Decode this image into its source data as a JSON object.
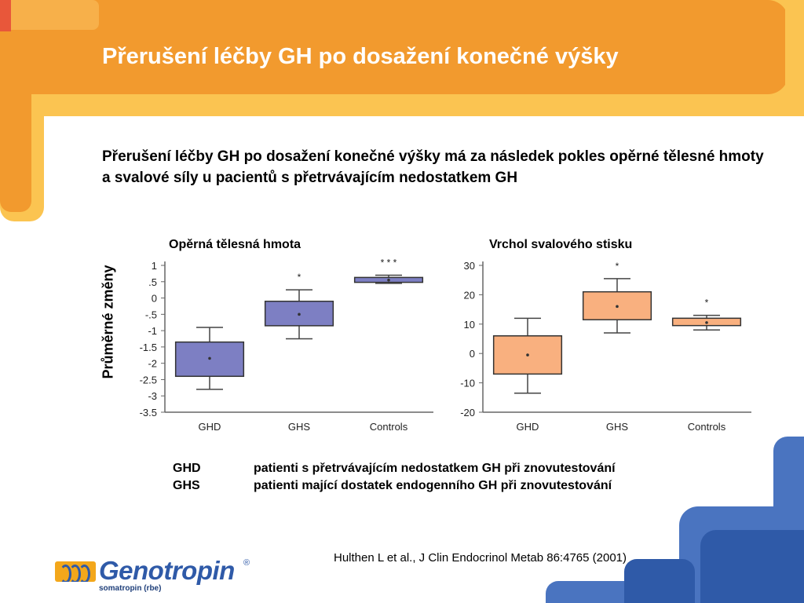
{
  "slide": {
    "title": "Přerušení léčby GH po dosažení konečné výšky",
    "subtitle": "Přerušení léčby GH po dosažení konečné výšky má za následek pokles opěrné tělesné hmoty a svalové síly u pacientů s přetrvávajícím nedostatkem GH",
    "y_axis_label": "Průměrné změny",
    "legend": [
      {
        "abbr": "GHD",
        "text": "patienti s přetrvávajícím nedostatkem GH  při znovutestování"
      },
      {
        "abbr": "GHS",
        "text": "patienti mající dostatek endogenního GH při znovutestování"
      }
    ],
    "citation": "Hulthen L et al., J Clin Endocrinol Metab 86:4765 (2001)"
  },
  "logo": {
    "brand": "Genotropin",
    "registered": "®",
    "sub": "somatropin (rbe)"
  },
  "colors": {
    "orange_band": "#f29a2e",
    "yellow_band": "#fbc451",
    "blue_decor": "#2f5aa8",
    "box_blue": "#7d7fc3",
    "box_orange": "#f9b07f"
  },
  "chart_data": [
    {
      "type": "box",
      "title": "Opěrná tělesná hmota",
      "categories": [
        "GHD",
        "GHS",
        "Controls"
      ],
      "ylim": [
        -3.5,
        1
      ],
      "ticks": [
        1,
        0.5,
        0,
        -0.5,
        -1,
        -1.5,
        -2,
        -2.5,
        -3,
        -3.5
      ],
      "tick_labels": [
        "1",
        ".5",
        "0",
        "-.5",
        "-1",
        "-1.5",
        "-2",
        "-2.5",
        "-3",
        "-3.5"
      ],
      "box_color": "#7d7fc3",
      "boxes": [
        {
          "whisker_low": -2.8,
          "q1": -2.4,
          "median": -1.85,
          "q3": -1.35,
          "whisker_high": -0.9,
          "mean": -1.85,
          "significance": ""
        },
        {
          "whisker_low": -1.25,
          "q1": -0.85,
          "median": -0.5,
          "q3": -0.1,
          "whisker_high": 0.25,
          "mean": -0.5,
          "significance": "*"
        },
        {
          "whisker_low": 0.45,
          "q1": 0.48,
          "median": 0.55,
          "q3": 0.63,
          "whisker_high": 0.7,
          "mean": 0.55,
          "significance": "* * *"
        }
      ]
    },
    {
      "type": "box",
      "title": "Vrchol svalového stisku",
      "categories": [
        "GHD",
        "GHS",
        "Controls"
      ],
      "ylim": [
        -20,
        30
      ],
      "ticks": [
        30,
        20,
        10,
        0,
        -10,
        -20
      ],
      "tick_labels": [
        "30",
        "20",
        "10",
        "0",
        "-10",
        "-20"
      ],
      "box_color": "#f9b07f",
      "boxes": [
        {
          "whisker_low": -13.5,
          "q1": -7,
          "median": -0.5,
          "q3": 6,
          "whisker_high": 12,
          "mean": -0.5,
          "significance": ""
        },
        {
          "whisker_low": 7,
          "q1": 11.5,
          "median": 16,
          "q3": 21,
          "whisker_high": 25.5,
          "mean": 16,
          "significance": "*"
        },
        {
          "whisker_low": 8,
          "q1": 9.5,
          "median": 10.5,
          "q3": 12,
          "whisker_high": 13,
          "mean": 10.5,
          "significance": "*"
        }
      ]
    }
  ]
}
